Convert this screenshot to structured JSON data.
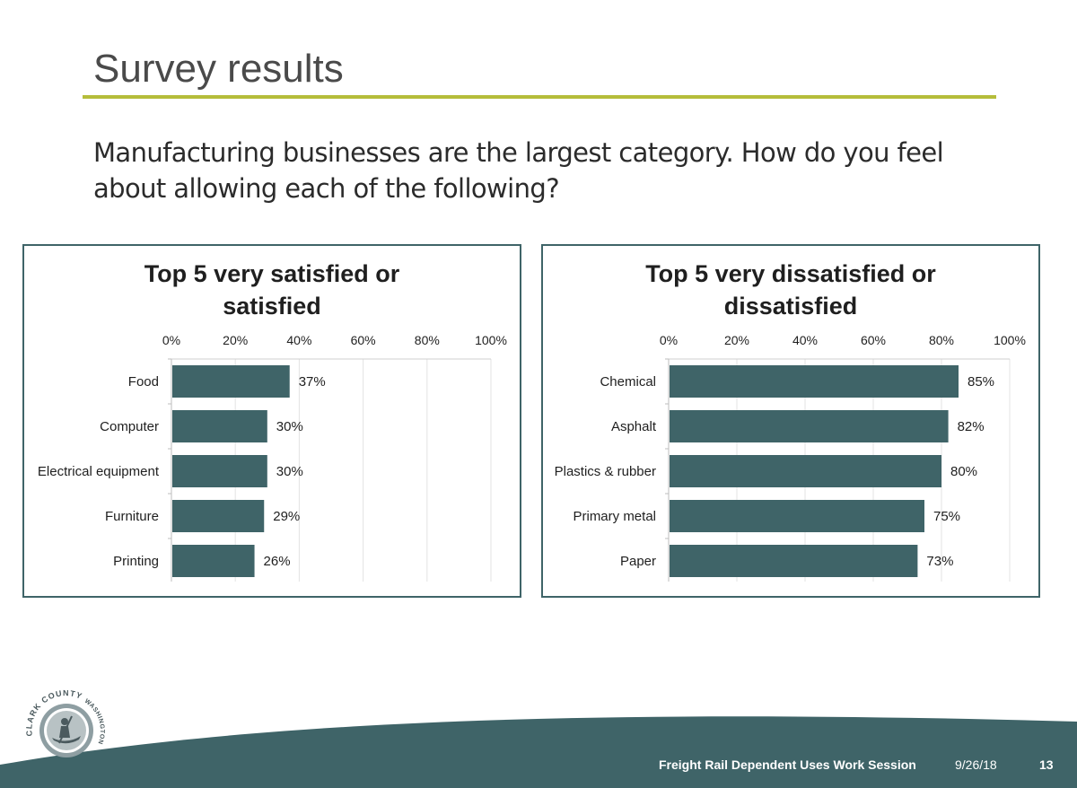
{
  "slide": {
    "title": "Survey results",
    "subtitle": "Manufacturing businesses are the largest category. How do you feel about allowing each of the following?"
  },
  "colors": {
    "bar": "#3f6468",
    "rule": "#b5bd3a",
    "footer": "#3f6468",
    "frame": "#3f6468"
  },
  "chart_data": [
    {
      "type": "bar",
      "orientation": "horizontal",
      "title_lines": [
        "Top 5 very satisfied or",
        "satisfied"
      ],
      "categories": [
        "Food",
        "Computer",
        "Electrical equipment",
        "Furniture",
        "Printing"
      ],
      "values": [
        37,
        30,
        30,
        29,
        26
      ],
      "value_labels": [
        "37%",
        "30%",
        "30%",
        "29%",
        "26%"
      ],
      "xlim": [
        0,
        100
      ],
      "ticks": [
        0,
        20,
        40,
        60,
        80,
        100
      ],
      "tick_labels": [
        "0%",
        "20%",
        "40%",
        "60%",
        "80%",
        "100%"
      ],
      "axis_position": "top",
      "grid": true
    },
    {
      "type": "bar",
      "orientation": "horizontal",
      "title_lines": [
        "Top 5 very dissatisfied or",
        "dissatisfied"
      ],
      "categories": [
        "Chemical",
        "Asphalt",
        "Plastics & rubber",
        "Primary metal",
        "Paper"
      ],
      "values": [
        85,
        82,
        80,
        75,
        73
      ],
      "value_labels": [
        "85%",
        "82%",
        "80%",
        "75%",
        "73%"
      ],
      "xlim": [
        0,
        100
      ],
      "ticks": [
        0,
        20,
        40,
        60,
        80,
        100
      ],
      "tick_labels": [
        "0%",
        "20%",
        "40%",
        "60%",
        "80%",
        "100%"
      ],
      "axis_position": "top",
      "grid": true
    }
  ],
  "logo": {
    "text_top": "CLARK COUNTY",
    "text_right": "WASHINGTON",
    "icon": "county-seal-icon"
  },
  "footer": {
    "session": "Freight Rail Dependent Uses Work Session",
    "date": "9/26/18",
    "page": "13"
  }
}
